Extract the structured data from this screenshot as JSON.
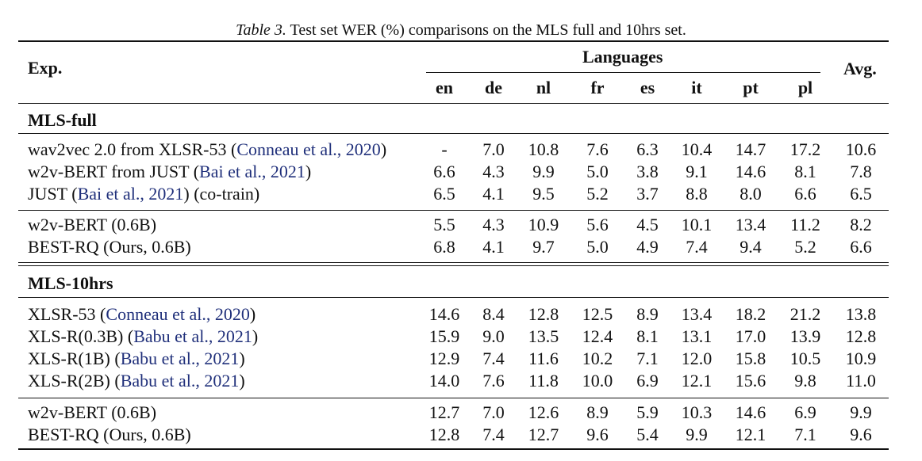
{
  "caption": {
    "label": "Table 3.",
    "text": "Test set WER (%) comparisons on the MLS full and 10hrs set."
  },
  "header": {
    "exp": "Exp.",
    "languages": "Languages",
    "avg": "Avg.",
    "langs": [
      "en",
      "de",
      "nl",
      "fr",
      "es",
      "it",
      "pt",
      "pl"
    ]
  },
  "sections": [
    {
      "title": "MLS-full",
      "groups": [
        [
          {
            "pre": "wav2vec 2.0 from XLSR-53 (",
            "cite": "Conneau et al., 2020",
            "post": ")",
            "values": [
              "-",
              "7.0",
              "10.8",
              "7.6",
              "6.3",
              "10.4",
              "14.7",
              "17.2"
            ],
            "avg": "10.6"
          },
          {
            "pre": "w2v-BERT from JUST (",
            "cite": "Bai et al., 2021",
            "post": ")",
            "values": [
              "6.6",
              "4.3",
              "9.9",
              "5.0",
              "3.8",
              "9.1",
              "14.6",
              "8.1"
            ],
            "avg": "7.8"
          },
          {
            "pre": "JUST (",
            "cite": "Bai et al., 2021",
            "post": ") (co-train)",
            "values": [
              "6.5",
              "4.1",
              "9.5",
              "5.2",
              "3.7",
              "8.8",
              "8.0",
              "6.6"
            ],
            "avg": "6.5"
          }
        ],
        [
          {
            "pre": "w2v-BERT (0.6B)",
            "cite": "",
            "post": "",
            "values": [
              "5.5",
              "4.3",
              "10.9",
              "5.6",
              "4.5",
              "10.1",
              "13.4",
              "11.2"
            ],
            "avg": "8.2"
          },
          {
            "pre": "BEST-RQ (Ours, 0.6B)",
            "cite": "",
            "post": "",
            "values": [
              "6.8",
              "4.1",
              "9.7",
              "5.0",
              "4.9",
              "7.4",
              "9.4",
              "5.2"
            ],
            "avg": "6.6"
          }
        ]
      ]
    },
    {
      "title": "MLS-10hrs",
      "groups": [
        [
          {
            "pre": "XLSR-53 (",
            "cite": "Conneau et al., 2020",
            "post": ")",
            "values": [
              "14.6",
              "8.4",
              "12.8",
              "12.5",
              "8.9",
              "13.4",
              "18.2",
              "21.2"
            ],
            "avg": "13.8"
          },
          {
            "pre": "XLS-R(0.3B) (",
            "cite": "Babu et al., 2021",
            "post": ")",
            "values": [
              "15.9",
              "9.0",
              "13.5",
              "12.4",
              "8.1",
              "13.1",
              "17.0",
              "13.9"
            ],
            "avg": "12.8"
          },
          {
            "pre": "XLS-R(1B) (",
            "cite": "Babu et al., 2021",
            "post": ")",
            "values": [
              "12.9",
              "7.4",
              "11.6",
              "10.2",
              "7.1",
              "12.0",
              "15.8",
              "10.5"
            ],
            "avg": "10.9"
          },
          {
            "pre": "XLS-R(2B) (",
            "cite": "Babu et al., 2021",
            "post": ")",
            "values": [
              "14.0",
              "7.6",
              "11.8",
              "10.0",
              "6.9",
              "12.1",
              "15.6",
              "9.8"
            ],
            "avg": "11.0"
          }
        ],
        [
          {
            "pre": "w2v-BERT (0.6B)",
            "cite": "",
            "post": "",
            "values": [
              "12.7",
              "7.0",
              "12.6",
              "8.9",
              "5.9",
              "10.3",
              "14.6",
              "6.9"
            ],
            "avg": "9.9"
          },
          {
            "pre": "BEST-RQ (Ours, 0.6B)",
            "cite": "",
            "post": "",
            "values": [
              "12.8",
              "7.4",
              "12.7",
              "9.6",
              "5.4",
              "9.9",
              "12.1",
              "7.1"
            ],
            "avg": "9.6"
          }
        ]
      ]
    }
  ]
}
